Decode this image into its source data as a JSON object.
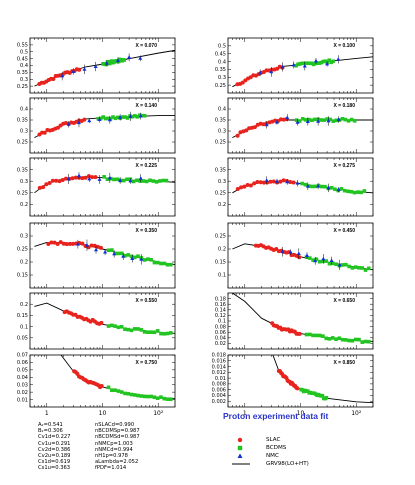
{
  "chart_data": {
    "type": "scatter",
    "x_scale": "log",
    "xlim": [
      0.5,
      200
    ],
    "x_ticks": [
      {
        "value": 1,
        "label": "1"
      },
      {
        "value": 10,
        "label": "10"
      },
      {
        "value": 100,
        "label": "10²"
      }
    ],
    "colors": {
      "SLAC": "#e8221c",
      "BCDMS": "#22c422",
      "NMC": "#1030d8",
      "fit": "#000000",
      "x_label": "#1a2ad0",
      "caption": "#2a35c8"
    },
    "legend": [
      {
        "name": "SLAC",
        "marker": "circle"
      },
      {
        "name": "BCDMS",
        "marker": "square"
      },
      {
        "name": "NMC",
        "marker": "triangle"
      },
      {
        "name": "GRV98(LO+HT)",
        "marker": "line"
      }
    ],
    "caption": "Proton experiment data fit",
    "params": {
      "left": [
        "A₂=0.541",
        "B₂=0.306",
        "Cv1d=0.227",
        "Cv1u=0.291",
        "Cv2d=0.386",
        "Cv2u=0.189",
        "Cs1d=0.619",
        "Cs1u=0.363"
      ],
      "right": [
        "nSLACd=0.990",
        "nBCDMSp=0.987",
        "nBCDMSd=0.987",
        "nNMCp=1.003",
        "nNMCd=0.994",
        "nH1p=0.978",
        "aLambda=2.052",
        "fPDF=1.014"
      ]
    },
    "panels": [
      {
        "label": "X = 0.070",
        "ylim": [
          0.2,
          0.6
        ],
        "yticks": [
          0.25,
          0.3,
          0.35,
          0.4,
          0.45,
          0.5,
          0.55
        ],
        "fit": [
          [
            0.6,
            0.25
          ],
          [
            1,
            0.29
          ],
          [
            2,
            0.34
          ],
          [
            5,
            0.39
          ],
          [
            10,
            0.41
          ],
          [
            30,
            0.45
          ],
          [
            100,
            0.49
          ],
          [
            200,
            0.51
          ]
        ],
        "range": {
          "SLAC": [
            0.7,
            4
          ],
          "BCDMS": [
            10,
            25
          ],
          "NMC": [
            1.5,
            60
          ]
        },
        "base": 0.29,
        "slope": 0.07
      },
      {
        "label": "X = 0.100",
        "ylim": [
          0.2,
          0.55
        ],
        "yticks": [
          0.25,
          0.3,
          0.35,
          0.4,
          0.45,
          0.5
        ],
        "fit": [
          [
            0.6,
            0.24
          ],
          [
            1,
            0.28
          ],
          [
            2,
            0.33
          ],
          [
            5,
            0.37
          ],
          [
            10,
            0.38
          ],
          [
            30,
            0.4
          ],
          [
            100,
            0.42
          ],
          [
            200,
            0.43
          ]
        ],
        "range": {
          "SLAC": [
            0.7,
            5
          ],
          "BCDMS": [
            8,
            40
          ],
          "NMC": [
            1.5,
            60
          ]
        },
        "base": 0.29,
        "slope": 0.05
      },
      {
        "label": "X = 0.140",
        "ylim": [
          0.2,
          0.45
        ],
        "yticks": [
          0.25,
          0.3,
          0.35,
          0.4
        ],
        "fit": [
          [
            0.6,
            0.27
          ],
          [
            1,
            0.3
          ],
          [
            2,
            0.33
          ],
          [
            5,
            0.355
          ],
          [
            10,
            0.36
          ],
          [
            30,
            0.365
          ],
          [
            100,
            0.37
          ],
          [
            200,
            0.37
          ]
        ],
        "range": {
          "SLAC": [
            0.7,
            5
          ],
          "BCDMS": [
            8,
            60
          ],
          "NMC": [
            2,
            60
          ]
        },
        "base": 0.3,
        "slope": 0.035
      },
      {
        "label": "X = 0.180",
        "ylim": [
          0.2,
          0.45
        ],
        "yticks": [
          0.25,
          0.3,
          0.35,
          0.4
        ],
        "fit": [
          [
            0.6,
            0.27
          ],
          [
            1,
            0.3
          ],
          [
            2,
            0.33
          ],
          [
            5,
            0.35
          ],
          [
            10,
            0.35
          ],
          [
            30,
            0.35
          ],
          [
            100,
            0.35
          ],
          [
            200,
            0.35
          ]
        ],
        "range": {
          "SLAC": [
            0.7,
            6
          ],
          "BCDMS": [
            8,
            100
          ],
          "NMC": [
            2,
            60
          ]
        },
        "base": 0.31,
        "slope": 0.02
      },
      {
        "label": "X = 0.225",
        "ylim": [
          0.15,
          0.4
        ],
        "yticks": [
          0.2,
          0.25,
          0.3,
          0.35
        ],
        "fit": [
          [
            0.6,
            0.25
          ],
          [
            1,
            0.29
          ],
          [
            2,
            0.31
          ],
          [
            5,
            0.32
          ],
          [
            10,
            0.315
          ],
          [
            30,
            0.305
          ],
          [
            100,
            0.3
          ],
          [
            200,
            0.295
          ]
        ],
        "range": {
          "SLAC": [
            0.7,
            8
          ],
          "BCDMS": [
            10,
            150
          ],
          "NMC": [
            2,
            60
          ]
        },
        "base": 0.31,
        "slope": 0.0
      },
      {
        "label": "X = 0.275",
        "ylim": [
          0.15,
          0.4
        ],
        "yticks": [
          0.2,
          0.25,
          0.3,
          0.35
        ],
        "fit": [
          [
            0.6,
            0.25
          ],
          [
            1,
            0.28
          ],
          [
            2,
            0.295
          ],
          [
            5,
            0.3
          ],
          [
            10,
            0.29
          ],
          [
            30,
            0.27
          ],
          [
            100,
            0.255
          ],
          [
            200,
            0.25
          ]
        ],
        "range": {
          "SLAC": [
            0.7,
            8
          ],
          "BCDMS": [
            10,
            150
          ],
          "NMC": [
            2,
            60
          ]
        },
        "base": 0.3,
        "slope": -0.02
      },
      {
        "label": "X = 0.350",
        "ylim": [
          0.1,
          0.35
        ],
        "yticks": [
          0.15,
          0.2,
          0.25,
          0.3
        ],
        "fit": [
          [
            0.6,
            0.26
          ],
          [
            1,
            0.275
          ],
          [
            2,
            0.275
          ],
          [
            5,
            0.265
          ],
          [
            10,
            0.25
          ],
          [
            30,
            0.225
          ],
          [
            100,
            0.2
          ],
          [
            200,
            0.19
          ]
        ],
        "range": {
          "SLAC": [
            1,
            10
          ],
          "BCDMS": [
            12,
            180
          ],
          "NMC": [
            3,
            60
          ]
        },
        "base": 0.275,
        "slope": -0.04
      },
      {
        "label": "X = 0.450",
        "ylim": [
          0.05,
          0.3
        ],
        "yticks": [
          0.1,
          0.15,
          0.2,
          0.25
        ],
        "fit": [
          [
            0.6,
            0.2
          ],
          [
            1,
            0.22
          ],
          [
            2,
            0.21
          ],
          [
            5,
            0.19
          ],
          [
            10,
            0.17
          ],
          [
            30,
            0.15
          ],
          [
            100,
            0.13
          ],
          [
            200,
            0.12
          ]
        ],
        "range": {
          "SLAC": [
            1.5,
            10
          ],
          "BCDMS": [
            12,
            180
          ],
          "NMC": [
            4,
            60
          ]
        },
        "base": 0.22,
        "slope": -0.045
      },
      {
        "label": "X = 0.550",
        "ylim": [
          0.0,
          0.25
        ],
        "yticks": [
          0.05,
          0.1,
          0.15,
          0.2
        ],
        "fit": [
          [
            0.6,
            0.19
          ],
          [
            1,
            0.205
          ],
          [
            2,
            0.17
          ],
          [
            5,
            0.135
          ],
          [
            10,
            0.11
          ],
          [
            30,
            0.09
          ],
          [
            100,
            0.075
          ],
          [
            200,
            0.07
          ]
        ],
        "range": {
          "SLAC": [
            2,
            10
          ],
          "BCDMS": [
            12,
            180
          ],
          "NMC": [
            0,
            0
          ]
        },
        "base": 0.165,
        "slope": -0.045
      },
      {
        "label": "X = 0.650",
        "ylim": [
          0.0,
          0.2
        ],
        "yticks": [
          0.02,
          0.04,
          0.06,
          0.08,
          0.1,
          0.12,
          0.14,
          0.16,
          0.18
        ],
        "fit": [
          [
            0.6,
            0.2
          ],
          [
            1,
            0.17
          ],
          [
            2,
            0.11
          ],
          [
            5,
            0.07
          ],
          [
            10,
            0.055
          ],
          [
            30,
            0.04
          ],
          [
            100,
            0.03
          ],
          [
            200,
            0.027
          ]
        ],
        "range": {
          "SLAC": [
            3,
            10
          ],
          "BCDMS": [
            12,
            180
          ],
          "NMC": [
            0,
            0
          ]
        },
        "base": 0.095,
        "slope": -0.04
      },
      {
        "label": "X = 0.750",
        "ylim": [
          0.0,
          0.07
        ],
        "yticks": [
          0.01,
          0.02,
          0.03,
          0.04,
          0.05,
          0.06,
          0.07
        ],
        "fit": [
          [
            1.8,
            0.07
          ],
          [
            3,
            0.048
          ],
          [
            5,
            0.035
          ],
          [
            10,
            0.027
          ],
          [
            30,
            0.018
          ],
          [
            100,
            0.013
          ],
          [
            200,
            0.011
          ]
        ],
        "range": {
          "SLAC": [
            3,
            10
          ],
          "BCDMS": [
            12,
            180
          ],
          "NMC": [
            0,
            0
          ]
        },
        "base": 0.038,
        "slope": -0.014
      },
      {
        "label": "X = 0.850",
        "ylim": [
          0.0,
          0.018
        ],
        "yticks": [
          0.002,
          0.004,
          0.006,
          0.008,
          0.01,
          0.012,
          0.014,
          0.016,
          0.018
        ],
        "fit": [
          [
            3.2,
            0.018
          ],
          [
            4,
            0.013
          ],
          [
            6,
            0.009
          ],
          [
            10,
            0.006
          ],
          [
            30,
            0.003
          ],
          [
            100,
            0.0018
          ],
          [
            200,
            0.0015
          ]
        ],
        "range": {
          "SLAC": [
            4,
            9
          ],
          "BCDMS": [
            10,
            30
          ],
          "NMC": [
            0,
            0
          ]
        },
        "base": 0.0072,
        "slope": -0.0035
      }
    ]
  }
}
